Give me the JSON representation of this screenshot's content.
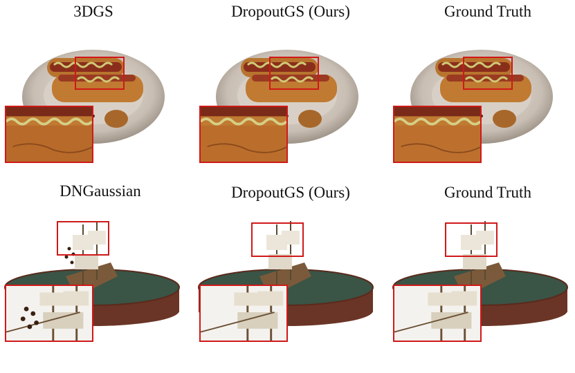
{
  "rows": [
    {
      "scene": "hotdog",
      "panels": [
        {
          "label": "3DGS"
        },
        {
          "label": "DropoutGS (Ours)"
        },
        {
          "label": "Ground Truth"
        }
      ]
    },
    {
      "scene": "ship",
      "panels": [
        {
          "label": "DNGaussian"
        },
        {
          "label": "DropoutGS (Ours)"
        },
        {
          "label": "Ground Truth"
        }
      ]
    }
  ],
  "colors": {
    "highlight_box": "#d01818",
    "plate": "#cfc6bd",
    "bun": "#c07a32",
    "sausage": "#9a3a22",
    "mustard": "#c9c46a",
    "water": "#3a5446",
    "basin": "#6a3526",
    "ship_wood": "#8a6a45",
    "sail": "#ece6da"
  }
}
